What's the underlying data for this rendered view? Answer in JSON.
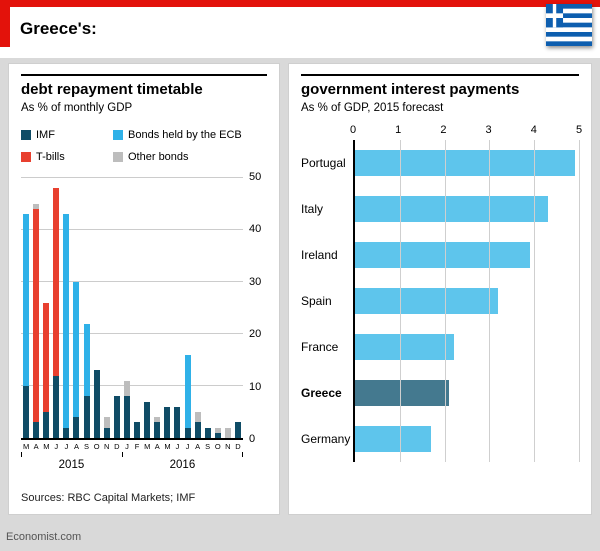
{
  "header": {
    "title": "Greece's:"
  },
  "footer": {
    "sources": "Sources: RBC Capital Markets; IMF",
    "brand": "Economist.com"
  },
  "colors": {
    "economist_red": "#E3120B",
    "background_gray": "#D9D9D9",
    "flag_blue": "#0D5EAF"
  },
  "chart_data": [
    {
      "type": "bar",
      "variant": "stacked-vertical",
      "title": "debt repayment timetable",
      "subtitle": "As % of monthly GDP",
      "categories": [
        "M",
        "A",
        "M",
        "J",
        "J",
        "A",
        "S",
        "O",
        "N",
        "D",
        "J",
        "F",
        "M",
        "A",
        "M",
        "J",
        "J",
        "A",
        "S",
        "O",
        "N",
        "D"
      ],
      "year_groups": [
        {
          "label": "2015",
          "months": 10
        },
        {
          "label": "2016",
          "months": 12
        }
      ],
      "series": [
        {
          "name": "IMF",
          "color": "#0F4C66",
          "values": [
            10,
            3,
            5,
            12,
            2,
            4,
            8,
            13,
            2,
            8,
            8,
            3,
            7,
            3,
            6,
            6,
            2,
            3,
            2,
            1,
            0,
            3
          ]
        },
        {
          "name": "T-bills",
          "color": "#E8402F",
          "values": [
            0,
            41,
            21,
            36,
            0,
            0,
            0,
            0,
            0,
            0,
            0,
            0,
            0,
            0,
            0,
            0,
            0,
            0,
            0,
            0,
            0,
            0
          ]
        },
        {
          "name": "Bonds held by the ECB",
          "color": "#2FB1E8",
          "values": [
            33,
            0,
            0,
            0,
            41,
            26,
            14,
            0,
            0,
            0,
            0,
            0,
            0,
            0,
            0,
            0,
            14,
            0,
            0,
            0,
            0,
            0
          ]
        },
        {
          "name": "Other bonds",
          "color": "#BDBDBD",
          "values": [
            0,
            1,
            0,
            0,
            0,
            0,
            0,
            0,
            2,
            0,
            3,
            0,
            0,
            1,
            0,
            0,
            0,
            2,
            0,
            1,
            2,
            0
          ]
        }
      ],
      "ylim": [
        0,
        50
      ],
      "yticks": [
        0,
        10,
        20,
        30,
        40,
        50
      ],
      "grid": "horizontal",
      "legend_position": "top"
    },
    {
      "type": "bar",
      "variant": "horizontal",
      "title": "government interest payments",
      "subtitle": "As % of GDP, 2015 forecast",
      "categories": [
        "Portugal",
        "Italy",
        "Ireland",
        "Spain",
        "France",
        "Greece",
        "Germany"
      ],
      "values": [
        4.9,
        4.3,
        3.9,
        3.2,
        2.2,
        2.1,
        1.7
      ],
      "highlight_category": "Greece",
      "bar_color": "#5EC5EC",
      "highlight_color": "#44798F",
      "xlim": [
        0,
        5
      ],
      "xticks": [
        0,
        1,
        2,
        3,
        4,
        5
      ],
      "grid": "vertical"
    }
  ]
}
